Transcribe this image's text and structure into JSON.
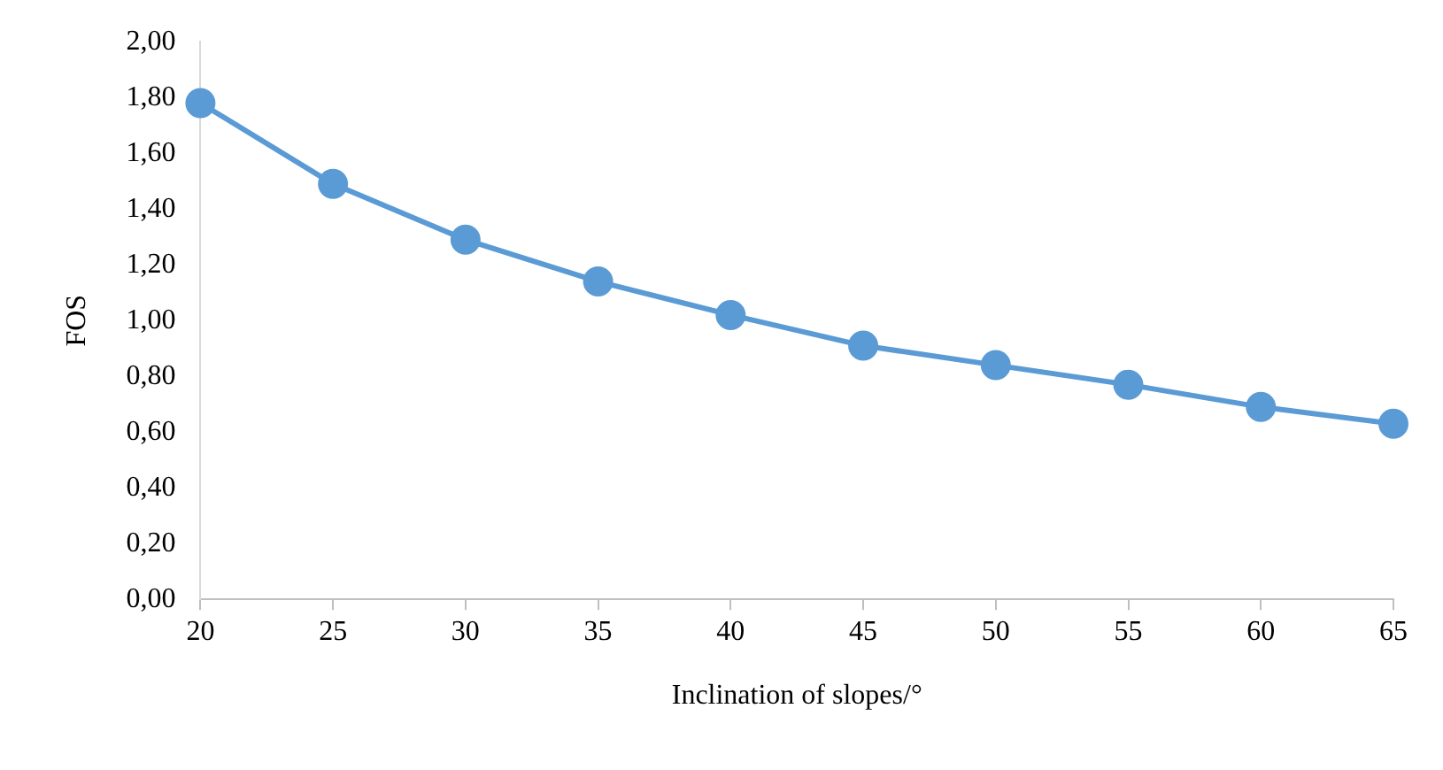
{
  "chart_data": {
    "type": "line",
    "xlabel": "Inclination of slopes/°",
    "ylabel": "FOS",
    "categories": [
      "20",
      "25",
      "30",
      "35",
      "40",
      "45",
      "50",
      "55",
      "60",
      "65"
    ],
    "series": [
      {
        "color": "#5b9bd5",
        "values": [
          1.78,
          1.49,
          1.29,
          1.14,
          1.02,
          0.91,
          0.84,
          0.77,
          0.69,
          0.63
        ]
      }
    ],
    "ylim": [
      0,
      2
    ],
    "yticks": [
      {
        "value": 0,
        "label": "0,00"
      },
      {
        "value": 0.2,
        "label": "0,20"
      },
      {
        "value": 0.4,
        "label": "0,40"
      },
      {
        "value": 0.6,
        "label": "0,60"
      },
      {
        "value": 0.8,
        "label": "0,80"
      },
      {
        "value": 1,
        "label": "1,00"
      },
      {
        "value": 1.2,
        "label": "1,20"
      },
      {
        "value": 1.4,
        "label": "1,40"
      },
      {
        "value": 1.6,
        "label": "1,60"
      },
      {
        "value": 1.8,
        "label": "1,80"
      },
      {
        "value": 2,
        "label": "2,00"
      }
    ],
    "grid": false,
    "legend": false,
    "marker": "circle",
    "line_style": "solid"
  }
}
